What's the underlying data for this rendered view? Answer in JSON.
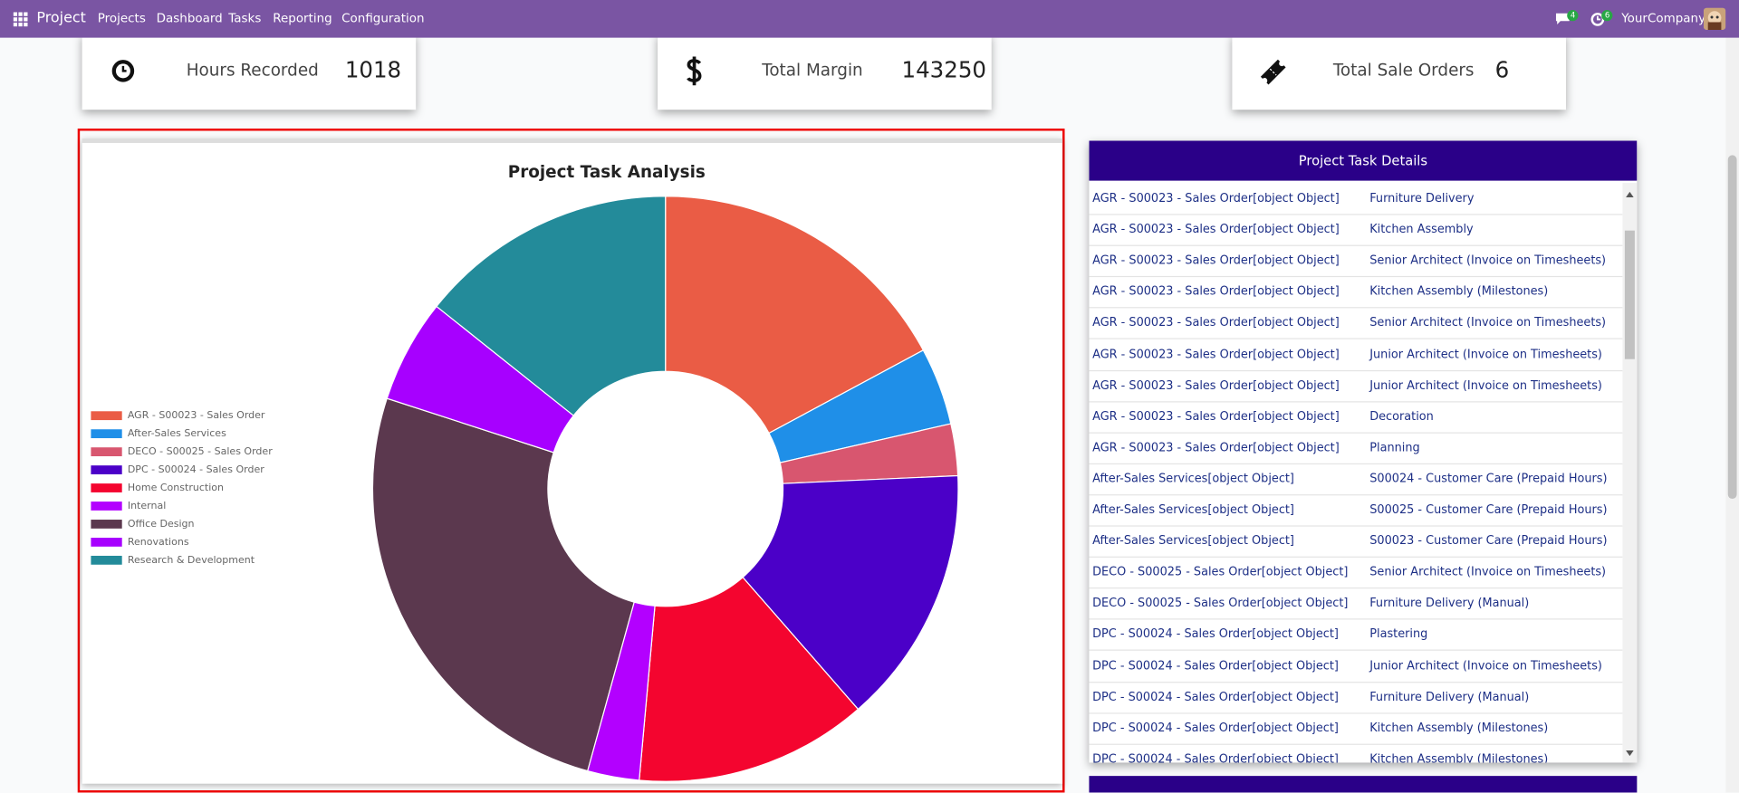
{
  "navbar": {
    "app": "Project",
    "menu": [
      "Projects",
      "Dashboard",
      "Tasks",
      "Reporting",
      "Configuration"
    ],
    "message_badge": 4,
    "activity_badge": 6,
    "company": "YourCompany"
  },
  "kpis": [
    {
      "label": "Hours Recorded",
      "value": 1018
    },
    {
      "label": "Total Margin",
      "value": 143250
    },
    {
      "label": "Total Sale Orders",
      "value": 6
    }
  ],
  "chart_data": {
    "type": "doughnut",
    "title": "Project Task Analysis",
    "categories": [
      "AGR - S00023 - Sales Order",
      "After-Sales Services",
      "DECO - S00025 - Sales Order",
      "DPC - S00024 - Sales Order",
      "Home Construction",
      "Internal",
      "Office Design",
      "Renovations",
      "Research & Development"
    ],
    "values": [
      6,
      1.5,
      1,
      5,
      4.5,
      1,
      9,
      2,
      5
    ],
    "colors": [
      "#ea5c45",
      "#1f8fe8",
      "#d8566f",
      "#4b00c8",
      "#f4052f",
      "#b300ff",
      "#5b384e",
      "#a700ff",
      "#238b9a"
    ]
  },
  "table": {
    "title": "Project Task Details",
    "rows": [
      [
        "AGR - S00023 - Sales Order[object Object]",
        "Furniture Delivery"
      ],
      [
        "AGR - S00023 - Sales Order[object Object]",
        "Kitchen Assembly"
      ],
      [
        "AGR - S00023 - Sales Order[object Object]",
        "Senior Architect (Invoice on Timesheets)"
      ],
      [
        "AGR - S00023 - Sales Order[object Object]",
        "Kitchen Assembly (Milestones)"
      ],
      [
        "AGR - S00023 - Sales Order[object Object]",
        "Senior Architect (Invoice on Timesheets)"
      ],
      [
        "AGR - S00023 - Sales Order[object Object]",
        "Junior Architect (Invoice on Timesheets)"
      ],
      [
        "AGR - S00023 - Sales Order[object Object]",
        "Junior Architect (Invoice on Timesheets)"
      ],
      [
        "AGR - S00023 - Sales Order[object Object]",
        "Decoration"
      ],
      [
        "AGR - S00023 - Sales Order[object Object]",
        "Planning"
      ],
      [
        "After-Sales Services[object Object]",
        "S00024 - Customer Care (Prepaid Hours)"
      ],
      [
        "After-Sales Services[object Object]",
        "S00025 - Customer Care (Prepaid Hours)"
      ],
      [
        "After-Sales Services[object Object]",
        "S00023 - Customer Care (Prepaid Hours)"
      ],
      [
        "DECO - S00025 - Sales Order[object Object]",
        "Senior Architect (Invoice on Timesheets)"
      ],
      [
        "DECO - S00025 - Sales Order[object Object]",
        "Furniture Delivery (Manual)"
      ],
      [
        "DPC - S00024 - Sales Order[object Object]",
        "Plastering"
      ],
      [
        "DPC - S00024 - Sales Order[object Object]",
        "Junior Architect (Invoice on Timesheets)"
      ],
      [
        "DPC - S00024 - Sales Order[object Object]",
        "Furniture Delivery (Manual)"
      ],
      [
        "DPC - S00024 - Sales Order[object Object]",
        "Kitchen Assembly (Milestones)"
      ],
      [
        "DPC - S00024 - Sales Order[object Object]",
        "Kitchen Assembly (Milestones)"
      ]
    ]
  }
}
